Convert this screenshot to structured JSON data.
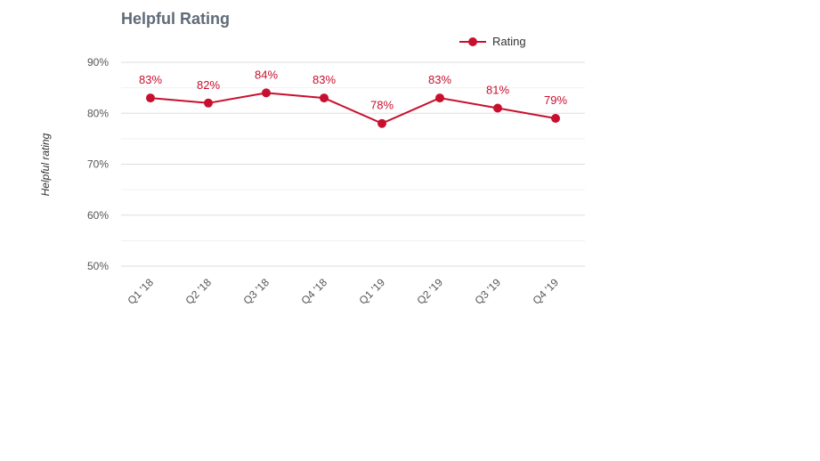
{
  "chart_data": {
    "type": "line",
    "title": "Helpful Rating",
    "ylabel": "Helpful rating",
    "xlabel": "",
    "categories": [
      "Q1 '18",
      "Q2 '18",
      "Q3 '18",
      "Q4 '18",
      "Q1 '19",
      "Q2 '19",
      "Q3 '19",
      "Q4 '19"
    ],
    "series": [
      {
        "name": "Rating",
        "values": [
          83,
          82,
          84,
          83,
          78,
          83,
          81,
          79
        ],
        "labels": [
          "83%",
          "82%",
          "84%",
          "83%",
          "78%",
          "83%",
          "81%",
          "79%"
        ],
        "color": "#c8102e"
      }
    ],
    "ylim": [
      50,
      90
    ],
    "yticks": [
      50,
      60,
      70,
      80,
      90
    ],
    "ytick_labels": [
      "50%",
      "60%",
      "70%",
      "80%",
      "90%"
    ],
    "grid": true,
    "legend_position": "top-right"
  }
}
